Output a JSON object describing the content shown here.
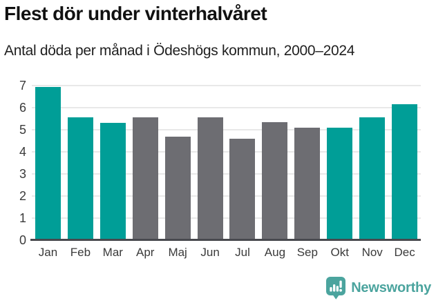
{
  "header": {
    "title": "Flest dör under vinterhalvåret",
    "subtitle": "Antal döda per månad i Ödeshögs kommun, 2000–2024"
  },
  "chart_data": {
    "type": "bar",
    "title": "Flest dör under vinterhalvåret",
    "subtitle": "Antal döda per månad i Ödeshögs kommun, 2000–2024",
    "categories": [
      "Jan",
      "Feb",
      "Mar",
      "Apr",
      "Maj",
      "Jun",
      "Jul",
      "Aug",
      "Sep",
      "Okt",
      "Nov",
      "Dec"
    ],
    "values": [
      6.95,
      5.55,
      5.3,
      5.55,
      4.7,
      5.55,
      4.6,
      5.35,
      5.1,
      5.1,
      5.55,
      6.15
    ],
    "highlighted": [
      true,
      true,
      true,
      false,
      false,
      false,
      false,
      false,
      false,
      true,
      true,
      true
    ],
    "xlabel": "",
    "ylabel": "",
    "ylim": [
      0,
      7
    ],
    "yticks": [
      0,
      1,
      2,
      3,
      4,
      5,
      6,
      7
    ],
    "grid": true,
    "legend": "none",
    "colors": {
      "highlight": "#009e97",
      "base": "#6d6d72",
      "gridline": "#e8e8e8",
      "axis_line": "#48494e",
      "tick_label": "#3a3a3a"
    }
  },
  "footer": {
    "brand": "Newsworthy",
    "brand_color": "#4ba49e"
  }
}
